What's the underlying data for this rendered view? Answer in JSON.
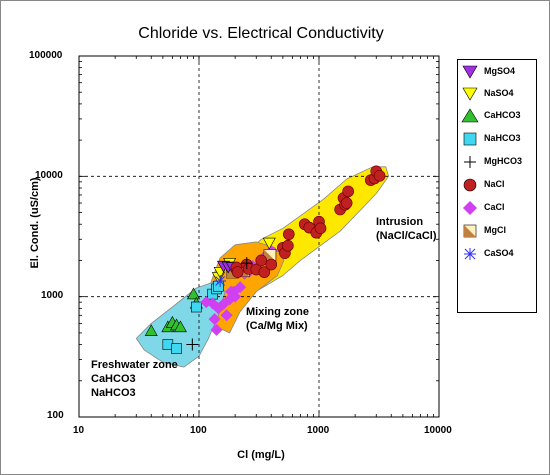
{
  "colors": {
    "mixing_zone": "#FFA500",
    "intrusion_zone": "#FFE800",
    "fresh_zone": "#7FD8E8",
    "MgSO4": "#A030E0",
    "NaSO4": "#FFFF00",
    "CaHCO3": "#30C030",
    "NaHCO3": "#40D8F0",
    "MgHCO3": "#000000",
    "NaCl": "#C02020",
    "CaCl": "#D040F0",
    "MgCl": "#C08040",
    "CaSO4": "#3030F0"
  },
  "chart_data": {
    "type": "scatter",
    "title": "Chloride vs. Electrical Conductivity",
    "xlabel": "Cl (mg/L)",
    "ylabel": "El. Cond. (uS/cm)",
    "x_scale": "log",
    "y_scale": "log",
    "xlim": [
      10,
      10000
    ],
    "ylim": [
      100,
      100000
    ],
    "x_ticks": [
      "10",
      "100",
      "1000",
      "10000"
    ],
    "y_ticks": [
      "100",
      "1000",
      "10000",
      "100000"
    ],
    "grid": "dashed at decades",
    "legend_position": "right",
    "legend": [
      "MgSO4",
      "NaSO4",
      "CaHCO3",
      "NaHCO3",
      "MgHCO3",
      "NaCl",
      "CaCl",
      "MgCl",
      "CaSO4"
    ],
    "zones": [
      {
        "id": "fresh",
        "lines": [
          "Freshwater zone",
          "CaHCO3",
          "NaHCO3"
        ]
      },
      {
        "id": "mixing",
        "lines": [
          "Mixing zone",
          "(Ca/Mg Mix)"
        ]
      },
      {
        "id": "intrusion",
        "lines": [
          "Intrusion",
          "(NaCl/CaCl)"
        ]
      }
    ],
    "zone_polygons": {
      "fresh": [
        [
          40,
          600
        ],
        [
          60,
          820
        ],
        [
          95,
          1180
        ],
        [
          140,
          1350
        ],
        [
          165,
          1100
        ],
        [
          145,
          700
        ],
        [
          120,
          450
        ],
        [
          100,
          320
        ],
        [
          75,
          260
        ],
        [
          50,
          285
        ],
        [
          35,
          360
        ],
        [
          30,
          450
        ]
      ],
      "mixing": [
        [
          115,
          1000
        ],
        [
          130,
          1450
        ],
        [
          150,
          2100
        ],
        [
          200,
          2700
        ],
        [
          300,
          2850
        ],
        [
          430,
          2550
        ],
        [
          510,
          2000
        ],
        [
          450,
          1500
        ],
        [
          300,
          1100
        ],
        [
          220,
          750
        ],
        [
          180,
          500
        ],
        [
          135,
          570
        ],
        [
          110,
          800
        ]
      ],
      "intrusion": [
        [
          200,
          1700
        ],
        [
          260,
          2400
        ],
        [
          330,
          3000
        ],
        [
          500,
          3700
        ],
        [
          700,
          4700
        ],
        [
          1100,
          6500
        ],
        [
          1700,
          9500
        ],
        [
          2800,
          12000
        ],
        [
          3600,
          12000
        ],
        [
          3800,
          10000
        ],
        [
          3000,
          7200
        ],
        [
          2200,
          5200
        ],
        [
          1500,
          3500
        ],
        [
          1000,
          2600
        ],
        [
          700,
          2000
        ],
        [
          500,
          1500
        ],
        [
          320,
          1150
        ],
        [
          230,
          1100
        ],
        [
          190,
          1300
        ]
      ]
    },
    "series": [
      {
        "name": "MgSO4",
        "marker": "triangle-down",
        "points": [
          [
            160,
            1800
          ],
          [
            175,
            1770
          ],
          [
            190,
            1750
          ]
        ]
      },
      {
        "name": "NaSO4",
        "marker": "triangle-down",
        "points": [
          [
            145,
            1450
          ],
          [
            150,
            1600
          ],
          [
            180,
            1900
          ],
          [
            205,
            1650
          ],
          [
            385,
            2800
          ]
        ]
      },
      {
        "name": "CaHCO3",
        "marker": "triangle-up",
        "points": [
          [
            40,
            520
          ],
          [
            55,
            560
          ],
          [
            60,
            610
          ],
          [
            65,
            580
          ],
          [
            70,
            560
          ],
          [
            90,
            1050
          ],
          [
            95,
            880
          ]
        ]
      },
      {
        "name": "NaHCO3",
        "marker": "square",
        "points": [
          [
            55,
            400
          ],
          [
            65,
            370
          ],
          [
            95,
            820
          ],
          [
            130,
            1050
          ],
          [
            140,
            1160
          ],
          [
            145,
            1220
          ]
        ]
      },
      {
        "name": "MgHCO3",
        "marker": "plus",
        "points": [
          [
            88,
            400
          ],
          [
            250,
            1900
          ]
        ]
      },
      {
        "name": "NaCl",
        "marker": "circle",
        "points": [
          [
            205,
            1750
          ],
          [
            210,
            1600
          ],
          [
            250,
            1850
          ],
          [
            260,
            1700
          ],
          [
            300,
            1680
          ],
          [
            330,
            2000
          ],
          [
            350,
            1600
          ],
          [
            400,
            1850
          ],
          [
            500,
            2550
          ],
          [
            520,
            2300
          ],
          [
            550,
            2650
          ],
          [
            560,
            3300
          ],
          [
            760,
            4000
          ],
          [
            830,
            3750
          ],
          [
            950,
            3400
          ],
          [
            1000,
            4200
          ],
          [
            1030,
            3700
          ],
          [
            1500,
            5300
          ],
          [
            1600,
            6600
          ],
          [
            1650,
            5800
          ],
          [
            1700,
            6000
          ],
          [
            1750,
            7500
          ],
          [
            2700,
            9300
          ],
          [
            2900,
            9600
          ],
          [
            3000,
            11000
          ],
          [
            3200,
            10100
          ]
        ]
      },
      {
        "name": "CaCl",
        "marker": "diamond",
        "points": [
          [
            115,
            900
          ],
          [
            130,
            880
          ],
          [
            135,
            650
          ],
          [
            140,
            530
          ],
          [
            145,
            800
          ],
          [
            160,
            870
          ],
          [
            170,
            700
          ],
          [
            180,
            950
          ],
          [
            185,
            1100
          ],
          [
            195,
            1100
          ],
          [
            200,
            1000
          ],
          [
            220,
            1200
          ],
          [
            240,
            1550
          ],
          [
            260,
            1600
          ],
          [
            280,
            1800
          ],
          [
            290,
            1700
          ],
          [
            330,
            2000
          ],
          [
            360,
            2200
          ],
          [
            400,
            2400
          ]
        ]
      },
      {
        "name": "MgCl",
        "marker": "square-split",
        "points": [
          [
            190,
            1600
          ],
          [
            235,
            1650
          ],
          [
            390,
            2200
          ]
        ]
      },
      {
        "name": "CaSO4",
        "marker": "asterisk",
        "points": [
          [
            150,
            1350
          ]
        ]
      }
    ]
  }
}
